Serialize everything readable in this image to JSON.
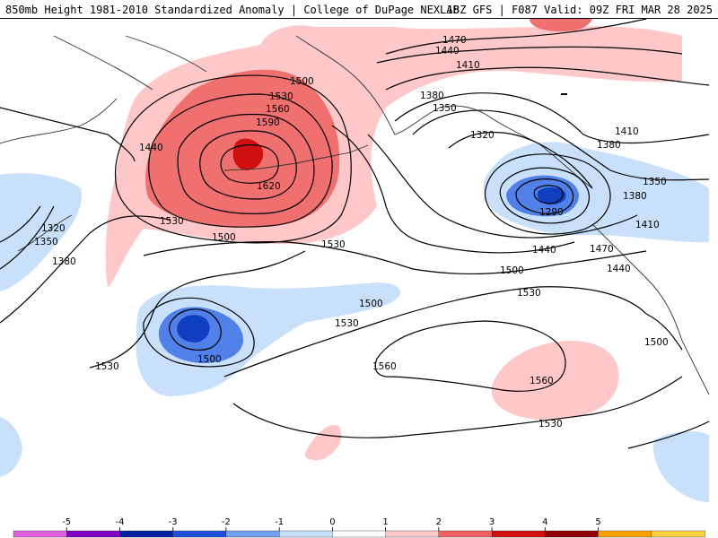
{
  "header": {
    "left": "850mb Height 1981-2010 Standardized Anomaly | College of DuPage NEXLAB",
    "right": "18Z GFS | F087 Valid: 09Z FRI MAR 28 2025"
  },
  "contour_labels": {
    "c1470_n": "1470",
    "c1440_n": "1440",
    "c1410_n": "1410",
    "c1500_ak": "1500",
    "c1530_h": "1530",
    "c1560_h": "1560",
    "c1590_h": "1590",
    "c1620_h": "1620",
    "c1440_w": "1440",
    "c1530_w": "1530",
    "c1500_w": "1500",
    "c1530_s": "1530",
    "c1320_w": "1320",
    "c1350_w": "1350",
    "c1380_w": "1380",
    "c1380_g": "1380",
    "c1350_g": "1350",
    "c1320_g": "1320",
    "c1290_g": "1290",
    "c1410_e": "1410",
    "c1380_e": "1380",
    "c1350_e": "1350",
    "c1380_e2": "1380",
    "c1410_e2": "1410",
    "c1440_e": "1440",
    "c1470_e": "1470",
    "c1440_e2": "1440",
    "c1500_c": "1500",
    "c1530_c": "1530",
    "c1500_l": "1500",
    "c1500_l2": "1500",
    "c1530_l": "1530",
    "c1530_c2": "1530",
    "c1560_c": "1560",
    "c1560_c2": "1560",
    "c1530_b": "1530",
    "c1500_mx": "1500"
  },
  "colorbar": {
    "ticks": [
      "-5",
      "-4",
      "-3",
      "-2",
      "-1",
      "0",
      "1",
      "2",
      "3",
      "4",
      "5"
    ],
    "colors": [
      "#e060e0",
      "#8000c0",
      "#0020a0",
      "#2050d8",
      "#70a0f0",
      "#c8e0fa",
      "#ffffff",
      "#ffc8c8",
      "#f06060",
      "#d01010",
      "#900000",
      "#ffa000",
      "#ffd040"
    ]
  },
  "anomaly_colors": {
    "pos1": "#ffc8c8",
    "pos2": "#f07070",
    "pos3": "#d01010",
    "neg1": "#c8e0fa",
    "neg2": "#5080e8",
    "neg3": "#1040c0"
  }
}
